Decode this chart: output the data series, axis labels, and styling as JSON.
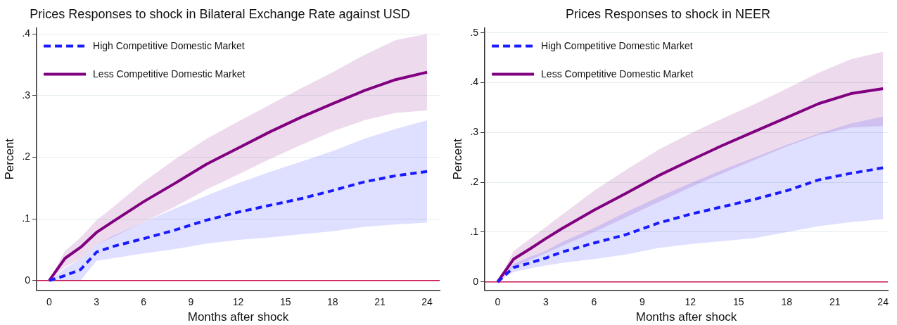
{
  "chart_data": [
    {
      "type": "line",
      "title": "Prices Responses to shock in Bilateral Exchange Rate against USD",
      "xlabel": "Months after shock",
      "ylabel": "Percent",
      "x": [
        0,
        1,
        2,
        3,
        4,
        6,
        8,
        10,
        12,
        14,
        16,
        18,
        20,
        22,
        24
      ],
      "series": [
        {
          "name": "High Competitive Domestic Market",
          "color": "#1a1aff",
          "line_style": "dashed",
          "values": [
            0,
            0.008,
            0.018,
            0.046,
            0.055,
            0.068,
            0.082,
            0.098,
            0.111,
            0.122,
            0.133,
            0.146,
            0.16,
            0.17,
            0.177
          ],
          "lower": [
            0,
            0.001,
            0,
            0.032,
            0.036,
            0.044,
            0.051,
            0.06,
            0.066,
            0.07,
            0.075,
            0.08,
            0.087,
            0.091,
            0.094
          ],
          "upper": [
            0,
            0.02,
            0.035,
            0.058,
            0.072,
            0.095,
            0.117,
            0.138,
            0.158,
            0.176,
            0.193,
            0.21,
            0.23,
            0.246,
            0.26
          ]
        },
        {
          "name": "Less Competitive Domestic Market",
          "color": "#800080",
          "line_style": "solid",
          "values": [
            0,
            0.036,
            0.054,
            0.078,
            0.095,
            0.128,
            0.158,
            0.189,
            0.215,
            0.241,
            0.265,
            0.287,
            0.308,
            0.326,
            0.338
          ],
          "lower": [
            0,
            0.022,
            0.035,
            0.058,
            0.07,
            0.095,
            0.12,
            0.148,
            0.172,
            0.197,
            0.22,
            0.242,
            0.26,
            0.272,
            0.276
          ],
          "upper": [
            0,
            0.048,
            0.07,
            0.098,
            0.118,
            0.16,
            0.197,
            0.23,
            0.258,
            0.285,
            0.312,
            0.338,
            0.366,
            0.39,
            0.4
          ]
        }
      ],
      "xlim": [
        -0.8,
        24.8
      ],
      "xticks": [
        0,
        3,
        6,
        9,
        12,
        15,
        18,
        21,
        24
      ],
      "ylim": [
        -0.016,
        0.41
      ],
      "yticks": [
        0,
        {
          "value": 0.1,
          "label": ".1"
        },
        {
          "value": 0.2,
          "label": ".2"
        },
        {
          "value": 0.3,
          "label": ".3"
        },
        {
          "value": 0.4,
          "label": ".4"
        }
      ],
      "ref_lines": [
        {
          "axis": "y",
          "value": 0,
          "color": "#c8104a"
        }
      ],
      "grid": "y",
      "legend": "top left",
      "marker": "none"
    },
    {
      "type": "line",
      "title": "Prices Responses to shock in NEER",
      "xlabel": "Months after shock",
      "ylabel": "Percent",
      "x": [
        0,
        1,
        2,
        3,
        4,
        6,
        8,
        10,
        12,
        14,
        16,
        18,
        20,
        22,
        24
      ],
      "series": [
        {
          "name": "High Competitive Domestic Market",
          "color": "#1a1aff",
          "line_style": "dashed",
          "values": [
            0,
            0.029,
            0.038,
            0.048,
            0.06,
            0.078,
            0.095,
            0.118,
            0.136,
            0.151,
            0.166,
            0.183,
            0.205,
            0.218,
            0.229
          ],
          "lower": [
            0,
            0.02,
            0.027,
            0.033,
            0.038,
            0.046,
            0.055,
            0.068,
            0.076,
            0.082,
            0.088,
            0.1,
            0.112,
            0.12,
            0.126
          ],
          "upper": [
            0,
            0.036,
            0.05,
            0.062,
            0.08,
            0.108,
            0.14,
            0.17,
            0.198,
            0.225,
            0.25,
            0.275,
            0.298,
            0.318,
            0.332
          ]
        },
        {
          "name": "Less Competitive Domestic Market",
          "color": "#800080",
          "line_style": "solid",
          "values": [
            0,
            0.046,
            0.066,
            0.087,
            0.107,
            0.144,
            0.178,
            0.213,
            0.244,
            0.274,
            0.302,
            0.33,
            0.358,
            0.378,
            0.388
          ],
          "lower": [
            0,
            0.03,
            0.044,
            0.058,
            0.072,
            0.1,
            0.13,
            0.16,
            0.19,
            0.218,
            0.245,
            0.272,
            0.295,
            0.31,
            0.313
          ],
          "upper": [
            0,
            0.062,
            0.086,
            0.11,
            0.135,
            0.183,
            0.225,
            0.265,
            0.298,
            0.328,
            0.357,
            0.388,
            0.42,
            0.447,
            0.462
          ]
        }
      ],
      "xlim": [
        -0.8,
        24.3
      ],
      "xticks": [
        0,
        3,
        6,
        9,
        12,
        15,
        18,
        21,
        24
      ],
      "ylim": [
        -0.017,
        0.51
      ],
      "yticks": [
        0,
        {
          "value": 0.1,
          "label": ".1"
        },
        {
          "value": 0.2,
          "label": ".2"
        },
        {
          "value": 0.3,
          "label": ".3"
        },
        {
          "value": 0.4,
          "label": ".4"
        },
        {
          "value": 0.5,
          "label": ".5"
        }
      ],
      "ref_lines": [
        {
          "axis": "y",
          "value": 0,
          "color": "#c8104a"
        }
      ],
      "grid": "y",
      "legend": "top left",
      "marker": "none"
    }
  ]
}
